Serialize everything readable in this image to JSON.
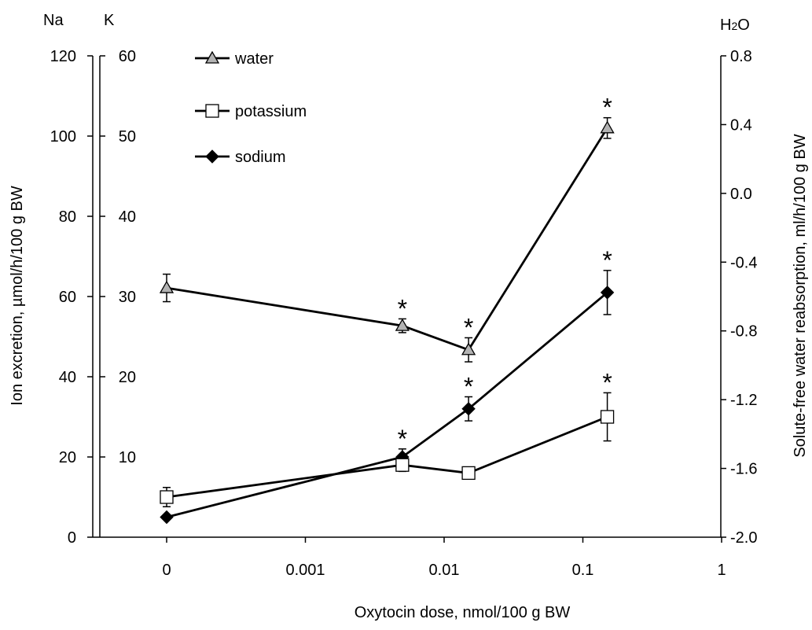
{
  "chart_data": {
    "type": "line",
    "xlabel": "Oxytocin dose, nmol/100 g BW",
    "ylabel_left": "Ion excretion, µmol/h/100 g BW",
    "ylabel_right": "Solute-free water reabsorption, ml/h/100 g BW",
    "axis_top_labels": {
      "na": "Na",
      "k": "K",
      "h2o_main": "H",
      "h2o_sub": "2",
      "h2o_end": "O"
    },
    "x_scale": "log",
    "x_tick_labels": [
      "0",
      "0.001",
      "0.01",
      "0.1",
      "1"
    ],
    "x_tick_values": [
      0.0001,
      0.001,
      0.01,
      0.1,
      1
    ],
    "x": [
      0.0001,
      0.005,
      0.015,
      0.15
    ],
    "y_axes": {
      "na": {
        "range": [
          0,
          120
        ],
        "ticks": [
          "0",
          "20",
          "40",
          "60",
          "80",
          "100",
          "120"
        ]
      },
      "k": {
        "range": [
          0,
          60
        ],
        "ticks": [
          "10",
          "20",
          "30",
          "40",
          "50",
          "60"
        ]
      },
      "h2o": {
        "range": [
          -2.0,
          0.8
        ],
        "ticks": [
          "-2.0",
          "-1.6",
          "-1.2",
          "-0.8",
          "-0.4",
          "0.0",
          "0.4",
          "0.8"
        ]
      }
    },
    "series": [
      {
        "name": "water",
        "axis": "h2o",
        "marker": "triangle",
        "color": "#b3b3b3",
        "values": [
          -0.55,
          -0.77,
          -0.91,
          0.38
        ],
        "err": [
          0.08,
          0.04,
          0.07,
          0.06
        ],
        "significant": [
          false,
          true,
          true,
          true
        ]
      },
      {
        "name": "potassium",
        "axis": "k",
        "marker": "square",
        "color": "#ffffff",
        "values": [
          5.0,
          9.0,
          8.0,
          15.0
        ],
        "err": [
          1.2,
          0.8,
          0.7,
          3.0
        ],
        "significant": [
          false,
          false,
          false,
          true
        ]
      },
      {
        "name": "sodium",
        "axis": "na",
        "marker": "diamond",
        "color": "#000000",
        "values": [
          5.0,
          20.0,
          32.0,
          61.0
        ],
        "err": [
          0.0,
          2.0,
          3.0,
          5.5
        ],
        "significant": [
          false,
          true,
          true,
          true
        ]
      }
    ],
    "significance_marker": "*",
    "legend": [
      "water",
      "potassium",
      "sodium"
    ],
    "legend_position": "top-left"
  }
}
